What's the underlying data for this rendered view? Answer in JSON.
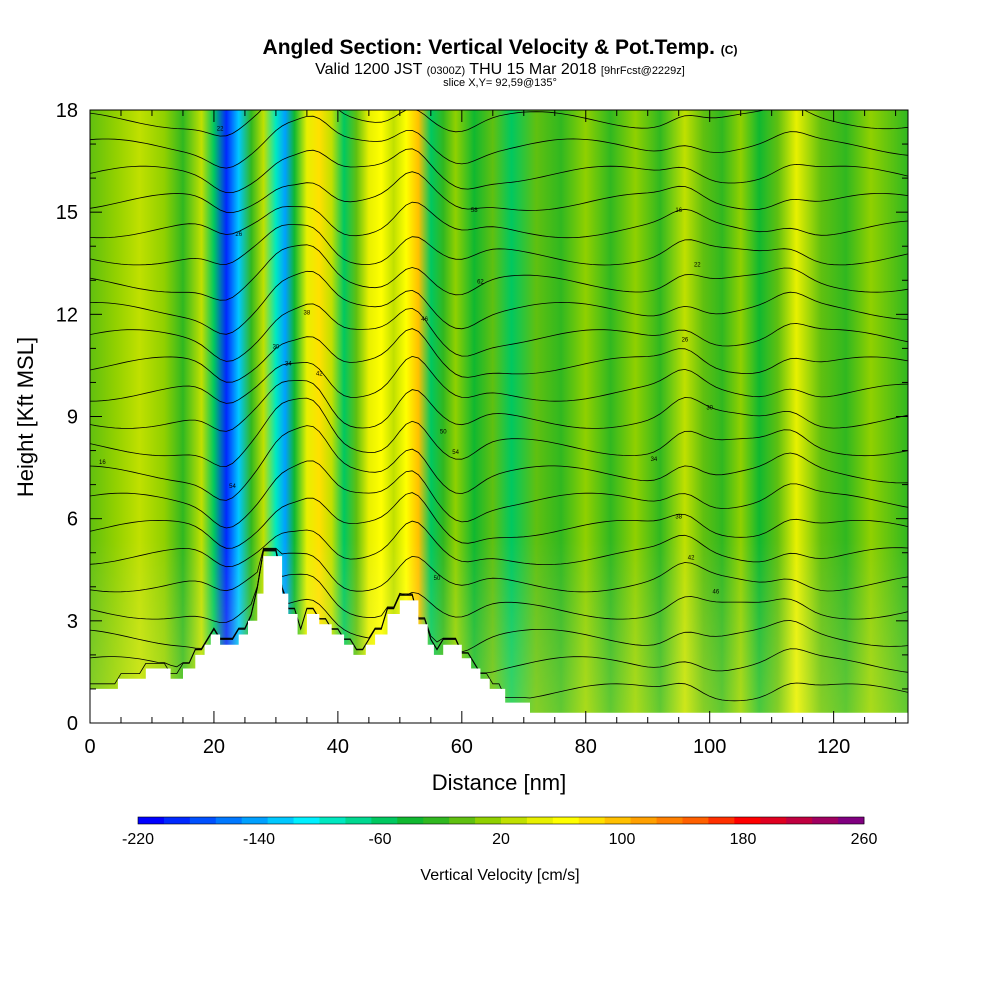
{
  "title": {
    "main": "Angled Section: Vertical Velocity & Pot.Temp.",
    "main_suffix": "(C)",
    "line2_a": "Valid 1200 JST",
    "line2_b": "(0300Z)",
    "line2_c": "THU 15 Mar 2018",
    "line2_d": "[9hrFcst@2229z]",
    "line3": "slice X,Y= 92,59@135°"
  },
  "chart_data": {
    "type": "heatmap",
    "xlabel": "Distance [nm]",
    "ylabel": "Height [Kft MSL]",
    "xlim": [
      0,
      132
    ],
    "ylim": [
      0,
      18
    ],
    "x_ticks": [
      0,
      20,
      40,
      60,
      80,
      100,
      120
    ],
    "y_ticks": [
      0,
      3,
      6,
      9,
      12,
      15,
      18
    ],
    "colorbar": {
      "label": "Vertical Velocity [cm/s]",
      "min": -220,
      "max": 260,
      "tick_labels": [
        "-220",
        "-140",
        "-60",
        "20",
        "100",
        "180",
        "260"
      ],
      "colors": [
        "#0000ff",
        "#0028ff",
        "#0050ff",
        "#0078ff",
        "#00a0ff",
        "#00c8ff",
        "#00f0ff",
        "#00e8c0",
        "#00d890",
        "#00c860",
        "#10b830",
        "#30b820",
        "#60c010",
        "#90d000",
        "#c0e000",
        "#e8f000",
        "#ffff00",
        "#ffe000",
        "#ffc000",
        "#ffa000",
        "#ff8000",
        "#ff6000",
        "#ff3000",
        "#ff0000",
        "#e00020",
        "#c00040",
        "#a00060",
        "#800080"
      ]
    },
    "velocity_columns": [
      {
        "x": 0,
        "w": -10
      },
      {
        "x": 4,
        "w": 5
      },
      {
        "x": 8,
        "w": 25
      },
      {
        "x": 12,
        "w": 5
      },
      {
        "x": 15,
        "w": -20
      },
      {
        "x": 18,
        "w": 20
      },
      {
        "x": 20,
        "w": -60
      },
      {
        "x": 22,
        "w": -200
      },
      {
        "x": 24,
        "w": -120
      },
      {
        "x": 26,
        "w": -30
      },
      {
        "x": 28,
        "w": 20
      },
      {
        "x": 30,
        "w": -100
      },
      {
        "x": 31.5,
        "w": -150
      },
      {
        "x": 33,
        "w": -40
      },
      {
        "x": 35,
        "w": 40
      },
      {
        "x": 37,
        "w": 80
      },
      {
        "x": 39,
        "w": 20
      },
      {
        "x": 41,
        "w": -50
      },
      {
        "x": 43,
        "w": 0
      },
      {
        "x": 45,
        "w": 50
      },
      {
        "x": 47,
        "w": 70
      },
      {
        "x": 49,
        "w": 30
      },
      {
        "x": 51,
        "w": 60
      },
      {
        "x": 53,
        "w": 90
      },
      {
        "x": 55,
        "w": -60
      },
      {
        "x": 57,
        "w": -20
      },
      {
        "x": 59,
        "w": 10
      },
      {
        "x": 62,
        "w": -40
      },
      {
        "x": 65,
        "w": -10
      },
      {
        "x": 68,
        "w": -50
      },
      {
        "x": 72,
        "w": 0
      },
      {
        "x": 76,
        "w": -30
      },
      {
        "x": 80,
        "w": 10
      },
      {
        "x": 84,
        "w": -20
      },
      {
        "x": 88,
        "w": 5
      },
      {
        "x": 92,
        "w": -25
      },
      {
        "x": 96,
        "w": 30
      },
      {
        "x": 99,
        "w": 0
      },
      {
        "x": 102,
        "w": -20
      },
      {
        "x": 105,
        "w": 15
      },
      {
        "x": 108,
        "w": -40
      },
      {
        "x": 111,
        "w": -10
      },
      {
        "x": 114,
        "w": 40
      },
      {
        "x": 118,
        "w": 0
      },
      {
        "x": 122,
        "w": -30
      },
      {
        "x": 126,
        "w": 10
      },
      {
        "x": 132,
        "w": -20
      }
    ],
    "terrain": [
      [
        0,
        1.0
      ],
      [
        4.5,
        1.0
      ],
      [
        4.5,
        1.3
      ],
      [
        9,
        1.3
      ],
      [
        9,
        1.6
      ],
      [
        13,
        1.6
      ],
      [
        13,
        1.3
      ],
      [
        15,
        1.3
      ],
      [
        15,
        1.6
      ],
      [
        17,
        1.6
      ],
      [
        17,
        2.0
      ],
      [
        18.5,
        2.0
      ],
      [
        18.5,
        2.3
      ],
      [
        19.5,
        2.3
      ],
      [
        19.5,
        2.6
      ],
      [
        21,
        2.6
      ],
      [
        21,
        2.3
      ],
      [
        24,
        2.3
      ],
      [
        24,
        2.6
      ],
      [
        25.5,
        2.6
      ],
      [
        25.5,
        3.0
      ],
      [
        27,
        3.0
      ],
      [
        27,
        3.8
      ],
      [
        28,
        3.8
      ],
      [
        28,
        4.9
      ],
      [
        31,
        4.9
      ],
      [
        31,
        3.8
      ],
      [
        32,
        3.8
      ],
      [
        32,
        3.2
      ],
      [
        33.5,
        3.2
      ],
      [
        33.5,
        2.6
      ],
      [
        35,
        2.6
      ],
      [
        35,
        3.2
      ],
      [
        37,
        3.2
      ],
      [
        37,
        2.9
      ],
      [
        39,
        2.9
      ],
      [
        39,
        2.6
      ],
      [
        41,
        2.6
      ],
      [
        41,
        2.3
      ],
      [
        42.5,
        2.3
      ],
      [
        42.5,
        2.0
      ],
      [
        44.5,
        2.0
      ],
      [
        44.5,
        2.3
      ],
      [
        46,
        2.3
      ],
      [
        46,
        2.6
      ],
      [
        48,
        2.6
      ],
      [
        48,
        3.2
      ],
      [
        50,
        3.2
      ],
      [
        50,
        3.6
      ],
      [
        53,
        3.6
      ],
      [
        53,
        2.9
      ],
      [
        54.5,
        2.9
      ],
      [
        54.5,
        2.3
      ],
      [
        55.5,
        2.3
      ],
      [
        55.5,
        2.0
      ],
      [
        57,
        2.0
      ],
      [
        57,
        2.3
      ],
      [
        60,
        2.3
      ],
      [
        60,
        1.9
      ],
      [
        61.5,
        1.9
      ],
      [
        61.5,
        1.6
      ],
      [
        63,
        1.6
      ],
      [
        63,
        1.3
      ],
      [
        64.5,
        1.3
      ],
      [
        64.5,
        1.0
      ],
      [
        67,
        1.0
      ],
      [
        67,
        0.6
      ],
      [
        71,
        0.6
      ],
      [
        71,
        0.3
      ],
      [
        132,
        0.3
      ]
    ],
    "contour_labels": [
      "16",
      "22",
      "26",
      "30",
      "34",
      "38",
      "42",
      "46",
      "50",
      "54",
      "58",
      "62"
    ]
  }
}
